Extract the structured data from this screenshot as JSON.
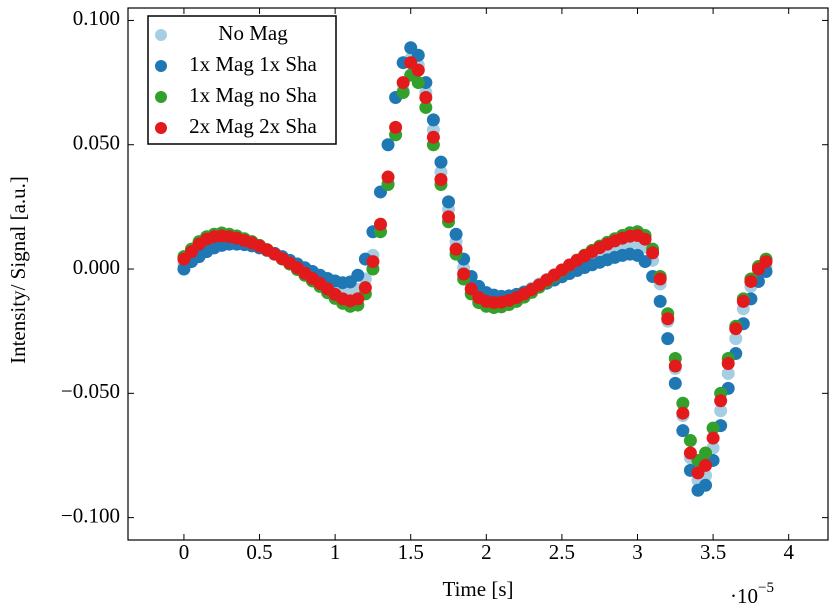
{
  "chart_data": {
    "type": "scatter",
    "xlabel": "Time [s]",
    "ylabel": "Intensity/ Signal [a.u.]",
    "x_multiplier": "·10",
    "x_multiplier_exponent": "−5",
    "xlim": [
      -0.37,
      4.26
    ],
    "ylim": [
      -0.109,
      0.105
    ],
    "xticks": [
      0,
      0.5,
      1,
      1.5,
      2,
      2.5,
      3,
      3.5,
      4
    ],
    "yticks": [
      {
        "value": -0.1,
        "label": "−0.100"
      },
      {
        "value": -0.05,
        "label": "−0.050"
      },
      {
        "value": 0,
        "label": "0.000"
      },
      {
        "value": 0.05,
        "label": "0.050"
      },
      {
        "value": 0.1,
        "label": "0.100"
      }
    ],
    "legend": "upper left",
    "x": [
      0,
      0.05,
      0.1,
      0.15,
      0.2,
      0.25,
      0.3,
      0.35,
      0.4,
      0.45,
      0.5,
      0.55,
      0.6,
      0.65,
      0.7,
      0.75,
      0.8,
      0.85,
      0.9,
      0.95,
      1,
      1.05,
      1.1,
      1.15,
      1.2,
      1.25,
      1.3,
      1.35,
      1.4,
      1.45,
      1.5,
      1.55,
      1.6,
      1.65,
      1.7,
      1.75,
      1.8,
      1.85,
      1.9,
      1.95,
      2,
      2.05,
      2.1,
      2.15,
      2.2,
      2.25,
      2.3,
      2.35,
      2.4,
      2.45,
      2.5,
      2.55,
      2.6,
      2.65,
      2.7,
      2.75,
      2.8,
      2.85,
      2.9,
      2.95,
      3,
      3.05,
      3.1,
      3.15,
      3.2,
      3.25,
      3.3,
      3.35,
      3.4,
      3.45,
      3.5,
      3.55,
      3.6,
      3.65,
      3.7,
      3.75,
      3.8,
      3.85
    ],
    "series": [
      {
        "name": "No Mag",
        "color": "#a6cee3",
        "values": [
          0.002,
          0.005,
          0.0075,
          0.0095,
          0.0107,
          0.0114,
          0.0115,
          0.0112,
          0.0106,
          0.0098,
          0.0088,
          0.0076,
          0.0062,
          0.0046,
          0.003,
          0.0013,
          -0.0005,
          -0.0023,
          -0.004,
          -0.0058,
          -0.0074,
          -0.0088,
          -0.0092,
          -0.0082,
          -0.004,
          0.0055,
          0.0175,
          0.0345,
          0.054,
          0.072,
          0.0845,
          0.082,
          0.071,
          0.056,
          0.039,
          0.024,
          0.011,
          0.0005,
          -0.0055,
          -0.009,
          -0.011,
          -0.012,
          -0.012,
          -0.0115,
          -0.0105,
          -0.0092,
          -0.0077,
          -0.006,
          -0.0042,
          -0.0024,
          -0.0007,
          0.001,
          0.0026,
          0.0041,
          0.0055,
          0.0068,
          0.0079,
          0.009,
          0.0099,
          0.0105,
          0.0105,
          0.0088,
          0.0035,
          -0.006,
          -0.021,
          -0.04,
          -0.059,
          -0.076,
          -0.085,
          -0.083,
          -0.072,
          -0.057,
          -0.042,
          -0.028,
          -0.016,
          -0.007,
          -0.002,
          0.001
        ]
      },
      {
        "name": "1x Mag 1x Sha",
        "color": "#1f78b4",
        "values": [
          0,
          0.003,
          0.005,
          0.007,
          0.0085,
          0.0095,
          0.01,
          0.01,
          0.0098,
          0.0093,
          0.0085,
          0.0075,
          0.0063,
          0.005,
          0.0035,
          0.002,
          0.0005,
          -0.001,
          -0.0025,
          -0.0038,
          -0.0048,
          -0.0055,
          -0.0052,
          -0.0025,
          0.004,
          0.015,
          0.031,
          0.05,
          0.069,
          0.083,
          0.089,
          0.086,
          0.075,
          0.06,
          0.043,
          0.027,
          0.014,
          0.004,
          -0.003,
          -0.007,
          -0.0095,
          -0.0105,
          -0.011,
          -0.0108,
          -0.0102,
          -0.0093,
          -0.0082,
          -0.007,
          -0.0057,
          -0.0044,
          -0.0031,
          -0.0018,
          -0.0006,
          0.0006,
          0.0017,
          0.0027,
          0.0037,
          0.0047,
          0.0055,
          0.006,
          0.0055,
          0.003,
          -0.003,
          -0.013,
          -0.028,
          -0.046,
          -0.065,
          -0.081,
          -0.089,
          -0.087,
          -0.077,
          -0.063,
          -0.048,
          -0.034,
          -0.022,
          -0.012,
          -0.005,
          -0.001
        ]
      },
      {
        "name": "1x Mag no Sha",
        "color": "#33a02c",
        "values": [
          0.005,
          0.008,
          0.011,
          0.013,
          0.014,
          0.0145,
          0.014,
          0.0133,
          0.0122,
          0.011,
          0.0095,
          0.0078,
          0.006,
          0.004,
          0.002,
          -0.0002,
          -0.0025,
          -0.0048,
          -0.007,
          -0.0095,
          -0.0118,
          -0.0138,
          -0.015,
          -0.0145,
          -0.01,
          0,
          0.015,
          0.034,
          0.054,
          0.071,
          0.078,
          0.075,
          0.065,
          0.05,
          0.034,
          0.019,
          0.006,
          -0.004,
          -0.01,
          -0.0135,
          -0.015,
          -0.0155,
          -0.0152,
          -0.0143,
          -0.013,
          -0.0113,
          -0.0094,
          -0.0073,
          -0.0051,
          -0.0029,
          -0.0007,
          0.0015,
          0.0036,
          0.0056,
          0.0075,
          0.0092,
          0.0107,
          0.0122,
          0.0135,
          0.0146,
          0.015,
          0.0135,
          0.008,
          -0.003,
          -0.018,
          -0.036,
          -0.054,
          -0.069,
          -0.077,
          -0.074,
          -0.064,
          -0.05,
          -0.036,
          -0.023,
          -0.012,
          -0.004,
          0.001,
          0.004
        ]
      },
      {
        "name": "2x Mag 2x Sha",
        "color": "#e31a1c",
        "values": [
          0.004,
          0.007,
          0.01,
          0.012,
          0.013,
          0.0133,
          0.013,
          0.0124,
          0.0115,
          0.0105,
          0.0092,
          0.0077,
          0.006,
          0.0042,
          0.0024,
          0.0005,
          -0.0017,
          -0.0038,
          -0.0058,
          -0.008,
          -0.0102,
          -0.012,
          -0.0128,
          -0.012,
          -0.0075,
          0.003,
          0.018,
          0.037,
          0.057,
          0.075,
          0.083,
          0.08,
          0.069,
          0.053,
          0.036,
          0.021,
          0.008,
          -0.002,
          -0.008,
          -0.0115,
          -0.013,
          -0.0135,
          -0.0133,
          -0.0126,
          -0.0115,
          -0.01,
          -0.0083,
          -0.0064,
          -0.0044,
          -0.0024,
          -0.0004,
          0.0016,
          0.0035,
          0.0053,
          0.007,
          0.0086,
          0.01,
          0.0113,
          0.0124,
          0.0132,
          0.0135,
          0.012,
          0.0065,
          -0.004,
          -0.02,
          -0.039,
          -0.058,
          -0.074,
          -0.082,
          -0.079,
          -0.068,
          -0.053,
          -0.038,
          -0.024,
          -0.013,
          -0.005,
          0,
          0.003
        ]
      }
    ]
  }
}
